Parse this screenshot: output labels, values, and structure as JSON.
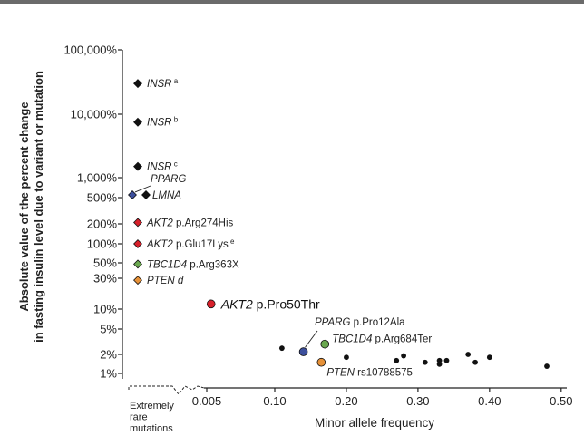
{
  "chart_data": {
    "type": "scatter",
    "y_scale": "log",
    "y_axis_label_lines": [
      "Absolute value of the percent change",
      "in fasting insulin level due to variant or mutation"
    ],
    "x_axis_label": "Minor allele frequency",
    "y_ticks": [
      {
        "value": 1,
        "label": "1%"
      },
      {
        "value": 2,
        "label": "2%"
      },
      {
        "value": 5,
        "label": "5%"
      },
      {
        "value": 10,
        "label": "10%"
      },
      {
        "value": 30,
        "label": "30%"
      },
      {
        "value": 50,
        "label": "50%"
      },
      {
        "value": 100,
        "label": "100%"
      },
      {
        "value": 200,
        "label": "200%"
      },
      {
        "value": 500,
        "label": "500%"
      },
      {
        "value": 1000,
        "label": "1,000%"
      },
      {
        "value": 10000,
        "label": "10,000%"
      },
      {
        "value": 100000,
        "label": "100,000%"
      }
    ],
    "x_ticks": [
      {
        "value": 0.005,
        "label": "0.005"
      },
      {
        "value": 0.1,
        "label": "0.10"
      },
      {
        "value": 0.2,
        "label": "0.20"
      },
      {
        "value": 0.3,
        "label": "0.30"
      },
      {
        "value": 0.4,
        "label": "0.40"
      },
      {
        "value": 0.5,
        "label": "0.50"
      }
    ],
    "rare_mutations_label_lines": [
      "Extremely",
      "rare",
      "mutations"
    ],
    "rare_mutations": [
      {
        "gene": "INSR",
        "note": "a",
        "value": 30000,
        "color": "#111111",
        "shape": "diamond"
      },
      {
        "gene": "INSR",
        "note": "b",
        "value": 7500,
        "color": "#111111",
        "shape": "diamond"
      },
      {
        "gene": "INSR",
        "note": "c",
        "value": 1500,
        "color": "#111111",
        "shape": "diamond"
      },
      {
        "gene": "PPARG",
        "note": "",
        "value": 550,
        "color": "#3c4f9c",
        "shape": "diamond"
      },
      {
        "gene": "LMNA",
        "note": "",
        "value": 550,
        "color": "#111111",
        "shape": "diamond"
      },
      {
        "gene": "AKT2",
        "detail": "p.Arg274His",
        "note": "",
        "value": 210,
        "color": "#d7202a",
        "shape": "diamond"
      },
      {
        "gene": "AKT2",
        "detail": "p.Glu17Lys",
        "note": "e",
        "value": 100,
        "color": "#d7202a",
        "shape": "diamond"
      },
      {
        "gene": "TBC1D4",
        "detail": "p.Arg363X",
        "note": "",
        "value": 48,
        "color": "#6aa84f",
        "shape": "diamond"
      },
      {
        "gene": "PTEN",
        "note": "d",
        "value": 28,
        "color": "#e69138",
        "shape": "diamond"
      }
    ],
    "variants": [
      {
        "gene": "AKT2",
        "detail": "p.Pro50Thr",
        "maf": 0.011,
        "value": 12,
        "color": "#d7202a"
      },
      {
        "gene": "PPARG",
        "detail": "p.Pro12Ala",
        "maf": 0.14,
        "value": 2.2,
        "color": "#3c4f9c"
      },
      {
        "gene": "TBC1D4",
        "detail": "p.Arg684Ter",
        "maf": 0.17,
        "value": 2.9,
        "color": "#6aa84f"
      },
      {
        "gene": "PTEN",
        "detail": "rs10788575",
        "maf": 0.165,
        "value": 1.5,
        "color": "#e69138"
      }
    ],
    "common_variants": [
      {
        "maf": 0.11,
        "value": 2.5
      },
      {
        "maf": 0.2,
        "value": 1.8
      },
      {
        "maf": 0.27,
        "value": 1.6
      },
      {
        "maf": 0.28,
        "value": 1.9
      },
      {
        "maf": 0.31,
        "value": 1.5
      },
      {
        "maf": 0.33,
        "value": 1.6
      },
      {
        "maf": 0.33,
        "value": 1.4
      },
      {
        "maf": 0.34,
        "value": 1.6
      },
      {
        "maf": 0.37,
        "value": 2.0
      },
      {
        "maf": 0.38,
        "value": 1.5
      },
      {
        "maf": 0.4,
        "value": 1.8
      },
      {
        "maf": 0.48,
        "value": 1.3
      }
    ]
  }
}
